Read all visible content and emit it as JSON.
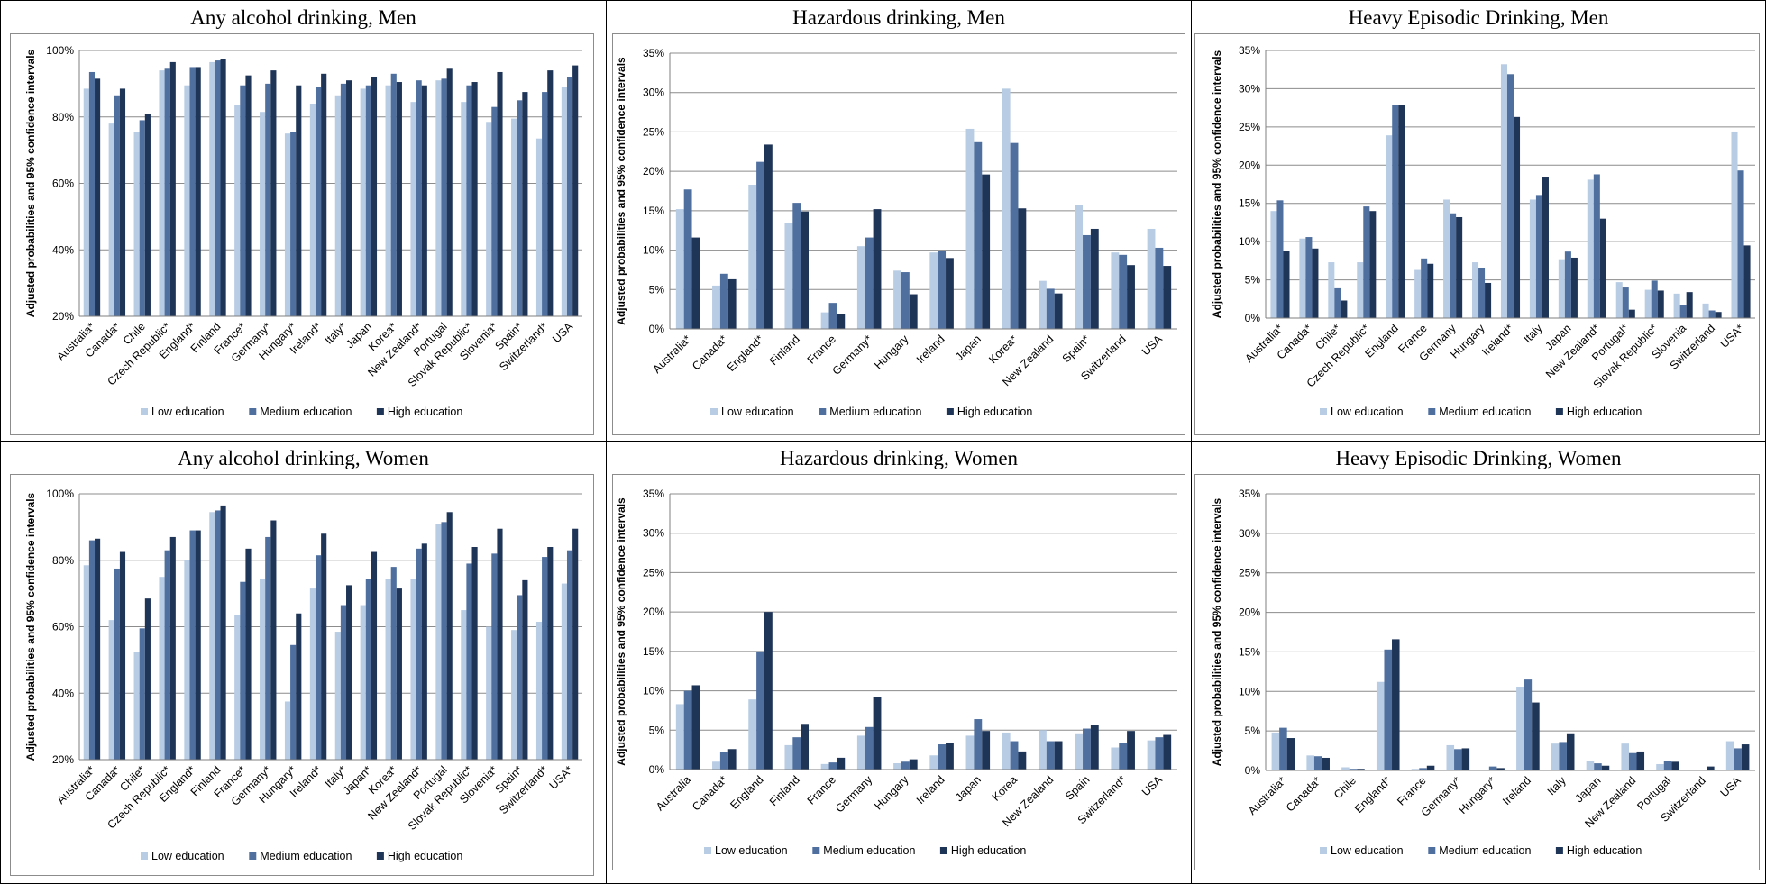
{
  "series_names": [
    "Low education",
    "Medium education",
    "High education"
  ],
  "colors": {
    "low": "#b8cce4",
    "medium": "#4f6f9f",
    "high": "#1f3558",
    "grid": "#8c8c8c",
    "axis": "#7f7f7f"
  },
  "chart_data": [
    {
      "type": "bar",
      "title": "Any alcohol drinking, Men",
      "ylabel": "Adjusted probabilities and 95% confidence intervals",
      "ylim": [
        0.2,
        1.0
      ],
      "yticks": [
        0.2,
        0.4,
        0.6,
        0.8,
        1.0
      ],
      "ytick_labels": [
        "20%",
        "40%",
        "60%",
        "80%",
        "100%"
      ],
      "categories": [
        "Australia*",
        "Canada*",
        "Chile",
        "Czech Republic*",
        "England*",
        "Finland",
        "France*",
        "Germany*",
        "Hungary*",
        "Ireland*",
        "Italy*",
        "Japan",
        "Korea*",
        "New Zealand*",
        "Portugal",
        "Slovak Republic*",
        "Slovenia*",
        "Spain*",
        "Switzerland*",
        "USA"
      ],
      "series": [
        {
          "name": "Low education",
          "values": [
            0.885,
            0.78,
            0.755,
            0.94,
            0.895,
            0.965,
            0.835,
            0.815,
            0.75,
            0.84,
            0.865,
            0.885,
            0.895,
            0.845,
            0.91,
            0.845,
            0.785,
            0.795,
            0.735,
            0.89
          ]
        },
        {
          "name": "Medium education",
          "values": [
            0.935,
            0.865,
            0.79,
            0.945,
            0.95,
            0.97,
            0.895,
            0.9,
            0.755,
            0.89,
            0.9,
            0.895,
            0.93,
            0.91,
            0.915,
            0.895,
            0.83,
            0.85,
            0.875,
            0.92
          ]
        },
        {
          "name": "High education",
          "values": [
            0.915,
            0.885,
            0.81,
            0.965,
            0.95,
            0.975,
            0.925,
            0.94,
            0.895,
            0.93,
            0.91,
            0.92,
            0.905,
            0.895,
            0.945,
            0.905,
            0.935,
            0.875,
            0.94,
            0.955
          ]
        }
      ],
      "legend": "bottom"
    },
    {
      "type": "bar",
      "title": "Hazardous drinking, Men",
      "ylabel": "Adjusted probabilities and 95% confidence intervals",
      "ylim": [
        0,
        0.35
      ],
      "yticks": [
        0,
        0.05,
        0.1,
        0.15,
        0.2,
        0.25,
        0.3,
        0.35
      ],
      "ytick_labels": [
        "0%",
        "5%",
        "10%",
        "15%",
        "20%",
        "25%",
        "30%",
        "35%"
      ],
      "categories": [
        "Australia*",
        "Canada*",
        "England*",
        "Finland",
        "France",
        "Germany*",
        "Hungary",
        "Ireland",
        "Japan",
        "Korea*",
        "New Zealand",
        "Spain*",
        "Switzerland",
        "USA"
      ],
      "series": [
        {
          "name": "Low education",
          "values": [
            0.152,
            0.055,
            0.183,
            0.134,
            0.021,
            0.105,
            0.074,
            0.097,
            0.254,
            0.305,
            0.061,
            0.157,
            0.097,
            0.127
          ]
        },
        {
          "name": "Medium education",
          "values": [
            0.177,
            0.07,
            0.212,
            0.16,
            0.033,
            0.116,
            0.072,
            0.099,
            0.237,
            0.236,
            0.051,
            0.119,
            0.094,
            0.103
          ]
        },
        {
          "name": "High education",
          "values": [
            0.116,
            0.063,
            0.234,
            0.149,
            0.019,
            0.152,
            0.044,
            0.09,
            0.196,
            0.153,
            0.045,
            0.127,
            0.081,
            0.08
          ]
        }
      ],
      "legend": "bottom"
    },
    {
      "type": "bar",
      "title": "Heavy Episodic Drinking, Men",
      "ylabel": "Adjusted probabilities and 95% confidence intervals",
      "ylim": [
        0,
        0.35
      ],
      "yticks": [
        0,
        0.05,
        0.1,
        0.15,
        0.2,
        0.25,
        0.3,
        0.35
      ],
      "ytick_labels": [
        "0%",
        "5%",
        "10%",
        "15%",
        "20%",
        "25%",
        "30%",
        "35%"
      ],
      "categories": [
        "Australia*",
        "Canada*",
        "Chile*",
        "Czech Republic*",
        "England",
        "France",
        "Germany",
        "Hungary",
        "Ireland*",
        "Italy",
        "Japan",
        "New Zealand*",
        "Portugal*",
        "Slovak Republic*",
        "Slovenia",
        "Switzerland",
        "USA*"
      ],
      "series": [
        {
          "name": "Low education",
          "values": [
            0.14,
            0.104,
            0.073,
            0.073,
            0.239,
            0.063,
            0.155,
            0.073,
            0.332,
            0.155,
            0.077,
            0.181,
            0.047,
            0.037,
            0.032,
            0.019,
            0.244
          ]
        },
        {
          "name": "Medium education",
          "values": [
            0.154,
            0.106,
            0.039,
            0.146,
            0.279,
            0.078,
            0.137,
            0.066,
            0.319,
            0.161,
            0.087,
            0.188,
            0.04,
            0.049,
            0.017,
            0.01,
            0.193
          ]
        },
        {
          "name": "High education",
          "values": [
            0.088,
            0.091,
            0.023,
            0.14,
            0.279,
            0.071,
            0.132,
            0.046,
            0.263,
            0.185,
            0.079,
            0.13,
            0.011,
            0.036,
            0.034,
            0.008,
            0.095
          ]
        }
      ],
      "legend": "bottom"
    },
    {
      "type": "bar",
      "title": "Any alcohol drinking, Women",
      "ylabel": "Adjusted probabilities and 95% confidence intervals",
      "ylim": [
        0.2,
        1.0
      ],
      "yticks": [
        0.2,
        0.4,
        0.6,
        0.8,
        1.0
      ],
      "ytick_labels": [
        "20%",
        "40%",
        "60%",
        "80%",
        "100%"
      ],
      "categories": [
        "Australia*",
        "Canada*",
        "Chile*",
        "Czech Republic*",
        "England*",
        "Finland",
        "France*",
        "Germany*",
        "Hungary*",
        "Ireland*",
        "Italy*",
        "Japan*",
        "Korea*",
        "New Zealand*",
        "Portugal",
        "Slovak Republic*",
        "Slovenia*",
        "Spain*",
        "Switzerland*",
        "USA*"
      ],
      "series": [
        {
          "name": "Low education",
          "values": [
            0.785,
            0.62,
            0.525,
            0.75,
            0.8,
            0.945,
            0.635,
            0.745,
            0.375,
            0.715,
            0.585,
            0.665,
            0.745,
            0.745,
            0.91,
            0.65,
            0.6,
            0.59,
            0.615,
            0.73
          ]
        },
        {
          "name": "Medium education",
          "values": [
            0.86,
            0.775,
            0.595,
            0.83,
            0.89,
            0.95,
            0.735,
            0.87,
            0.545,
            0.815,
            0.665,
            0.745,
            0.78,
            0.835,
            0.915,
            0.79,
            0.82,
            0.695,
            0.81,
            0.83
          ]
        },
        {
          "name": "High education",
          "values": [
            0.865,
            0.825,
            0.685,
            0.87,
            0.89,
            0.965,
            0.835,
            0.92,
            0.64,
            0.88,
            0.725,
            0.825,
            0.715,
            0.85,
            0.945,
            0.84,
            0.895,
            0.74,
            0.84,
            0.895
          ]
        }
      ],
      "legend": "bottom"
    },
    {
      "type": "bar",
      "title": "Hazardous drinking, Women",
      "ylabel": "Adjusted probabilities and 95% confidence intervals",
      "ylim": [
        0,
        0.35
      ],
      "yticks": [
        0,
        0.05,
        0.1,
        0.15,
        0.2,
        0.25,
        0.3,
        0.35
      ],
      "ytick_labels": [
        "0%",
        "5%",
        "10%",
        "15%",
        "20%",
        "25%",
        "30%",
        "35%"
      ],
      "categories": [
        "Australia",
        "Canada*",
        "England",
        "Finland",
        "France",
        "Germany",
        "Hungary",
        "Ireland",
        "Japan",
        "Korea",
        "New Zealand",
        "Spain",
        "Switzerland*",
        "USA"
      ],
      "series": [
        {
          "name": "Low education",
          "values": [
            0.083,
            0.01,
            0.089,
            0.031,
            0.007,
            0.043,
            0.008,
            0.018,
            0.043,
            0.047,
            0.05,
            0.046,
            0.028,
            0.037
          ]
        },
        {
          "name": "Medium education",
          "values": [
            0.1,
            0.022,
            0.15,
            0.041,
            0.009,
            0.054,
            0.01,
            0.032,
            0.064,
            0.036,
            0.036,
            0.052,
            0.034,
            0.041
          ]
        },
        {
          "name": "High education",
          "values": [
            0.107,
            0.026,
            0.2,
            0.058,
            0.015,
            0.092,
            0.013,
            0.034,
            0.049,
            0.023,
            0.036,
            0.057,
            0.049,
            0.044
          ]
        }
      ],
      "legend": "bottom"
    },
    {
      "type": "bar",
      "title": "Heavy Episodic Drinking, Women",
      "ylabel": "Adjusted probabilities and 95% confidence intervals",
      "ylim": [
        0,
        0.35
      ],
      "yticks": [
        0,
        0.05,
        0.1,
        0.15,
        0.2,
        0.25,
        0.3,
        0.35
      ],
      "ytick_labels": [
        "0%",
        "5%",
        "10%",
        "15%",
        "20%",
        "25%",
        "30%",
        "35%"
      ],
      "categories": [
        "Australia*",
        "Canada*",
        "Chile",
        "England*",
        "France",
        "Germany*",
        "Hungary*",
        "Ireland",
        "Italy",
        "Japan",
        "New Zealand",
        "Portugal",
        "Switzerland",
        "USA"
      ],
      "series": [
        {
          "name": "Low education",
          "values": [
            0.048,
            0.019,
            0.004,
            0.112,
            0.002,
            0.032,
            0.001,
            0.106,
            0.034,
            0.012,
            0.034,
            0.008,
            0.001,
            0.037
          ]
        },
        {
          "name": "Medium education",
          "values": [
            0.054,
            0.018,
            0.002,
            0.153,
            0.003,
            0.027,
            0.005,
            0.115,
            0.036,
            0.009,
            0.022,
            0.012,
            0.0,
            0.028
          ]
        },
        {
          "name": "High education",
          "values": [
            0.041,
            0.016,
            0.002,
            0.166,
            0.006,
            0.028,
            0.003,
            0.086,
            0.047,
            0.006,
            0.024,
            0.011,
            0.005,
            0.033
          ]
        }
      ],
      "legend": "bottom"
    }
  ]
}
